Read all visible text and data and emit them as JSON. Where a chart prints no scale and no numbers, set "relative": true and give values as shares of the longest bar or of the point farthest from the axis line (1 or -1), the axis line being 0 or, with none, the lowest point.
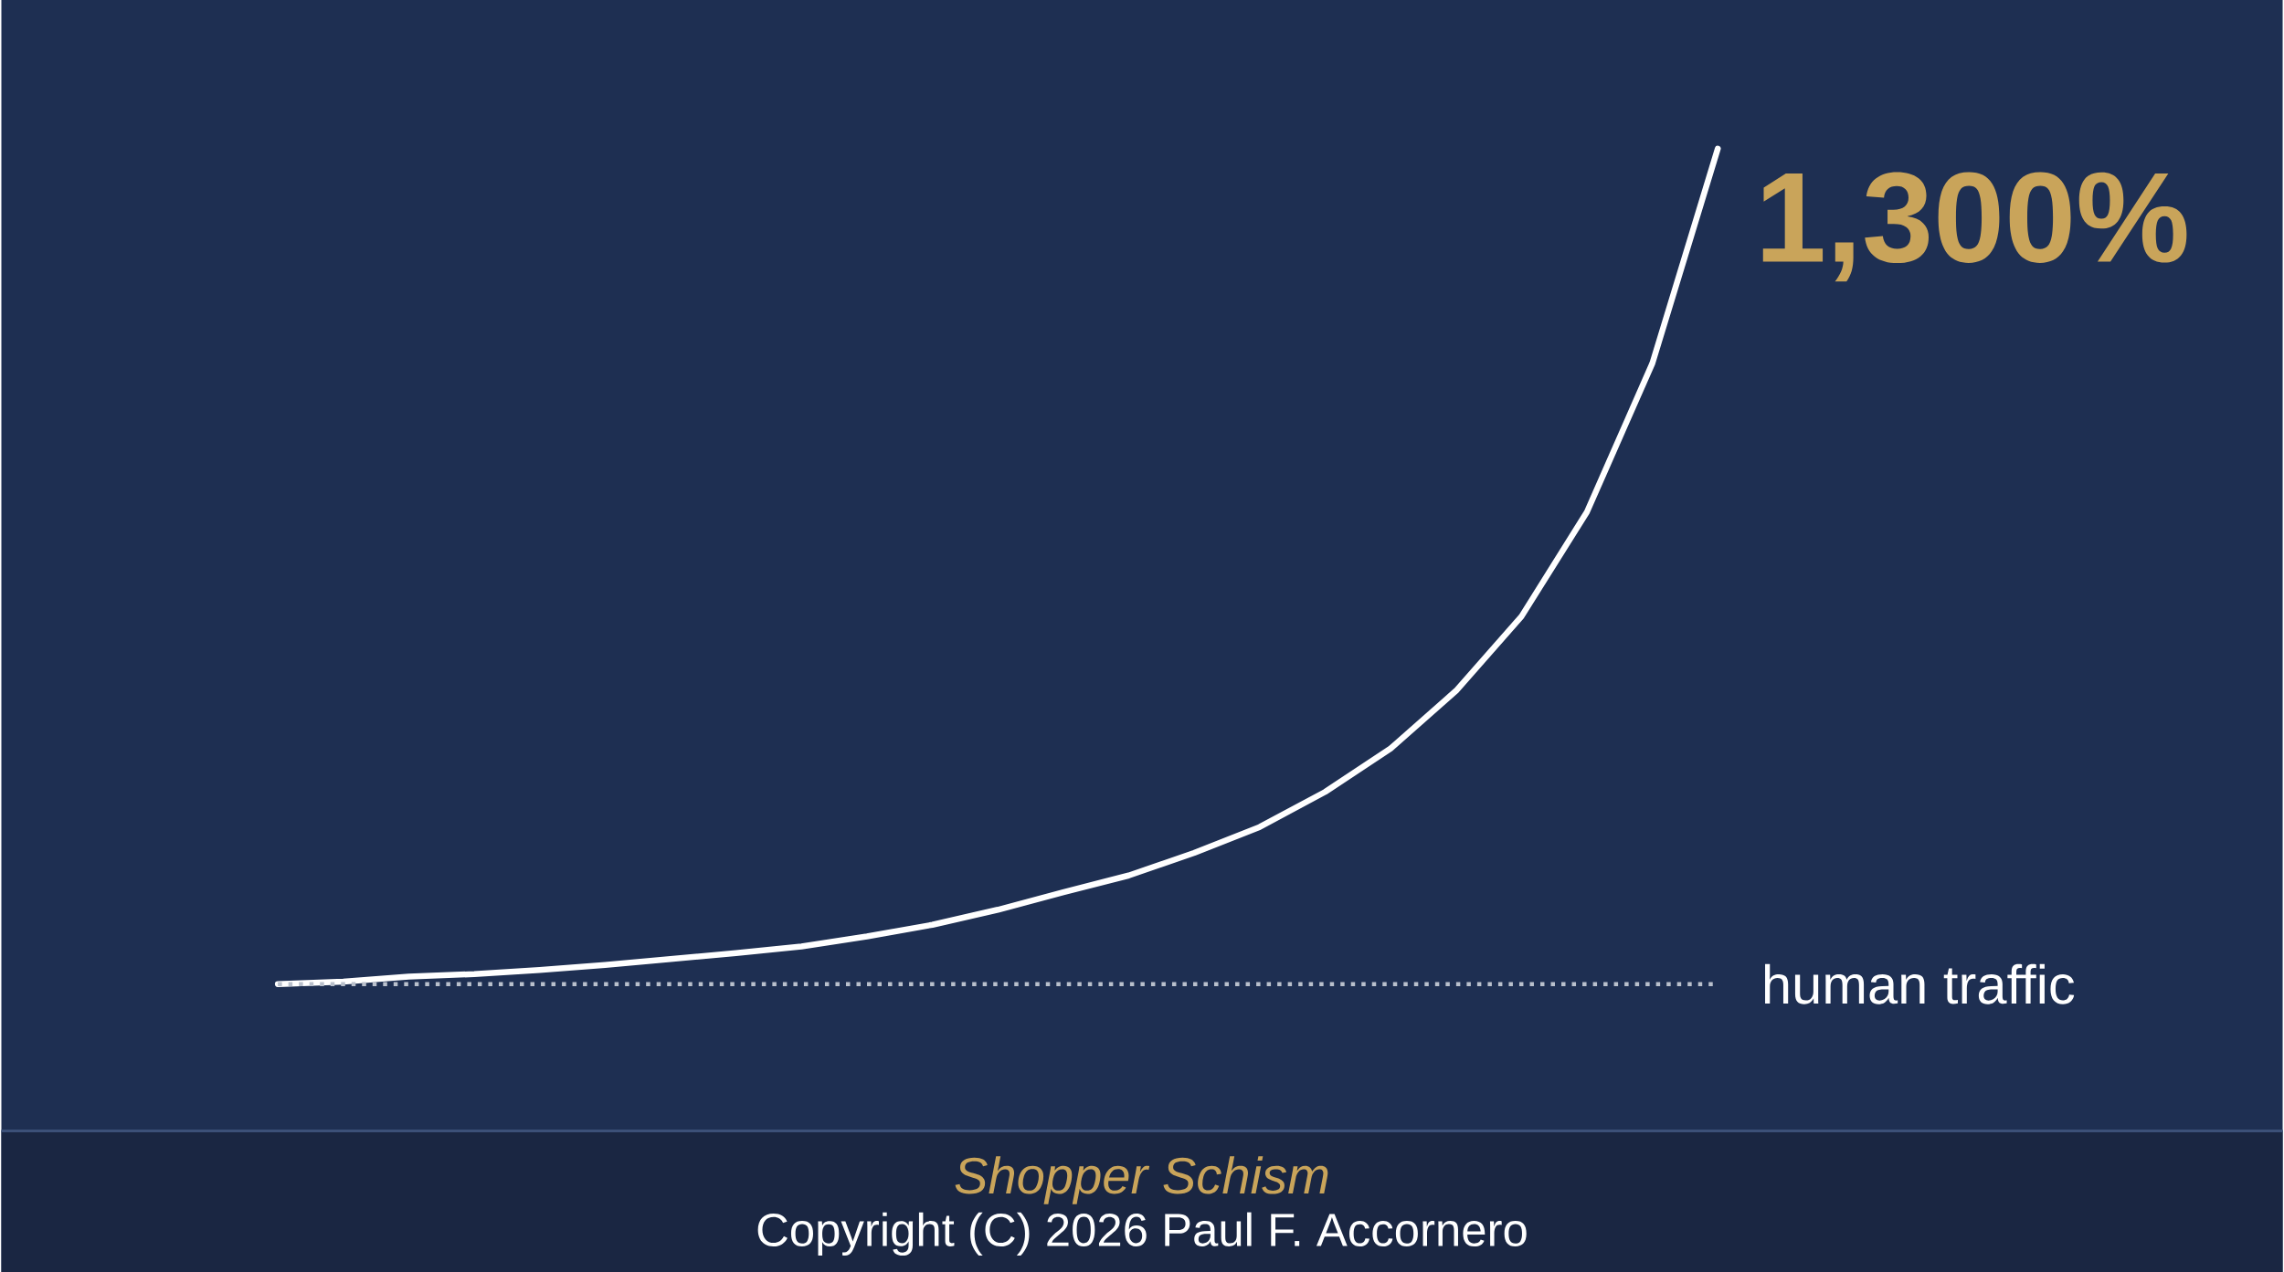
{
  "chart_data": {
    "type": "line",
    "relative": true,
    "categories": [
      null,
      null,
      null,
      null,
      null,
      null,
      null,
      null,
      null,
      null,
      null,
      null,
      null,
      null,
      null,
      null,
      null,
      null,
      null,
      null,
      null,
      null,
      null
    ],
    "series": [
      {
        "color": "#ffffff",
        "values": [
          0,
          0.003,
          0.009,
          0.012,
          0.017,
          0.023,
          0.03,
          0.037,
          0.045,
          0.057,
          0.071,
          0.089,
          0.11,
          0.13,
          0.157,
          0.188,
          0.23,
          0.282,
          0.351,
          0.44,
          0.565,
          0.743,
          1
        ]
      }
    ],
    "line_style": "solid",
    "ref_lines": [
      {
        "axis": "y",
        "value": 0,
        "label": "human traffic",
        "color": "#b9c0cc",
        "line_style": "dotted"
      }
    ],
    "annotations": [
      "1,300%",
      "Shopper Schism",
      "Copyright (C) 2026 Paul F. Accornero"
    ]
  }
}
